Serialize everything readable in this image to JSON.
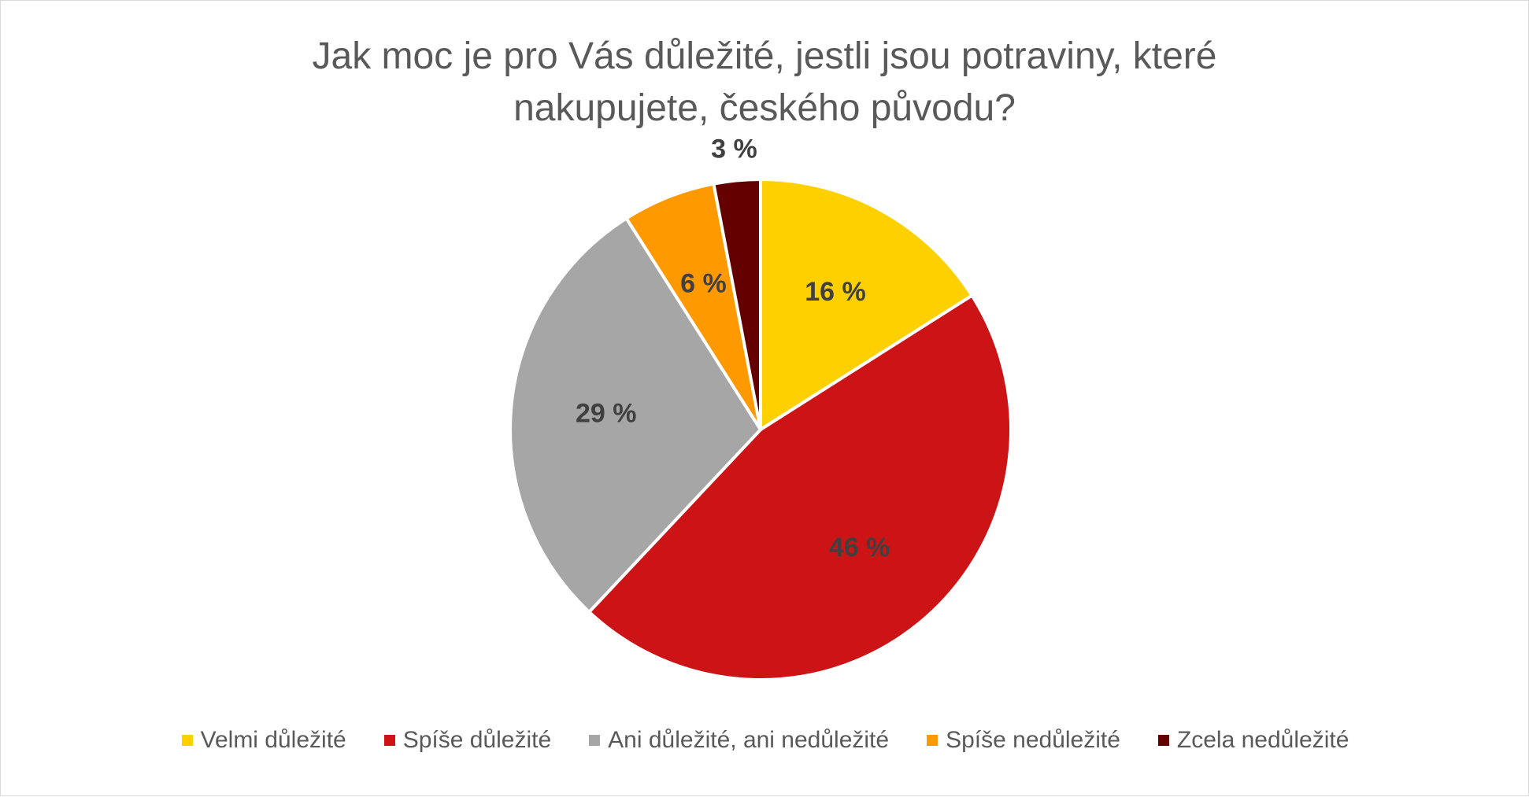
{
  "chart_data": {
    "type": "pie",
    "title_lines": [
      "Jak moc je pro Vás důležité, jestli jsou potraviny, které",
      "nakupujete, českého původu?"
    ],
    "legend_position": "bottom",
    "slices": [
      {
        "label": "Velmi důležité",
        "value": 16,
        "display": "16 %",
        "color": "#FFD000"
      },
      {
        "label": "Spíše důležité",
        "value": 46,
        "display": "46 %",
        "color": "#CC1416"
      },
      {
        "label": "Ani důležité, ani nedůležité",
        "value": 29,
        "display": "29 %",
        "color": "#A6A6A6"
      },
      {
        "label": "Spíše nedůležité",
        "value": 6,
        "display": "6 %",
        "color": "#FF9900"
      },
      {
        "label": "Zcela nedůležité",
        "value": 3,
        "display": "3 %",
        "color": "#650000"
      }
    ]
  }
}
